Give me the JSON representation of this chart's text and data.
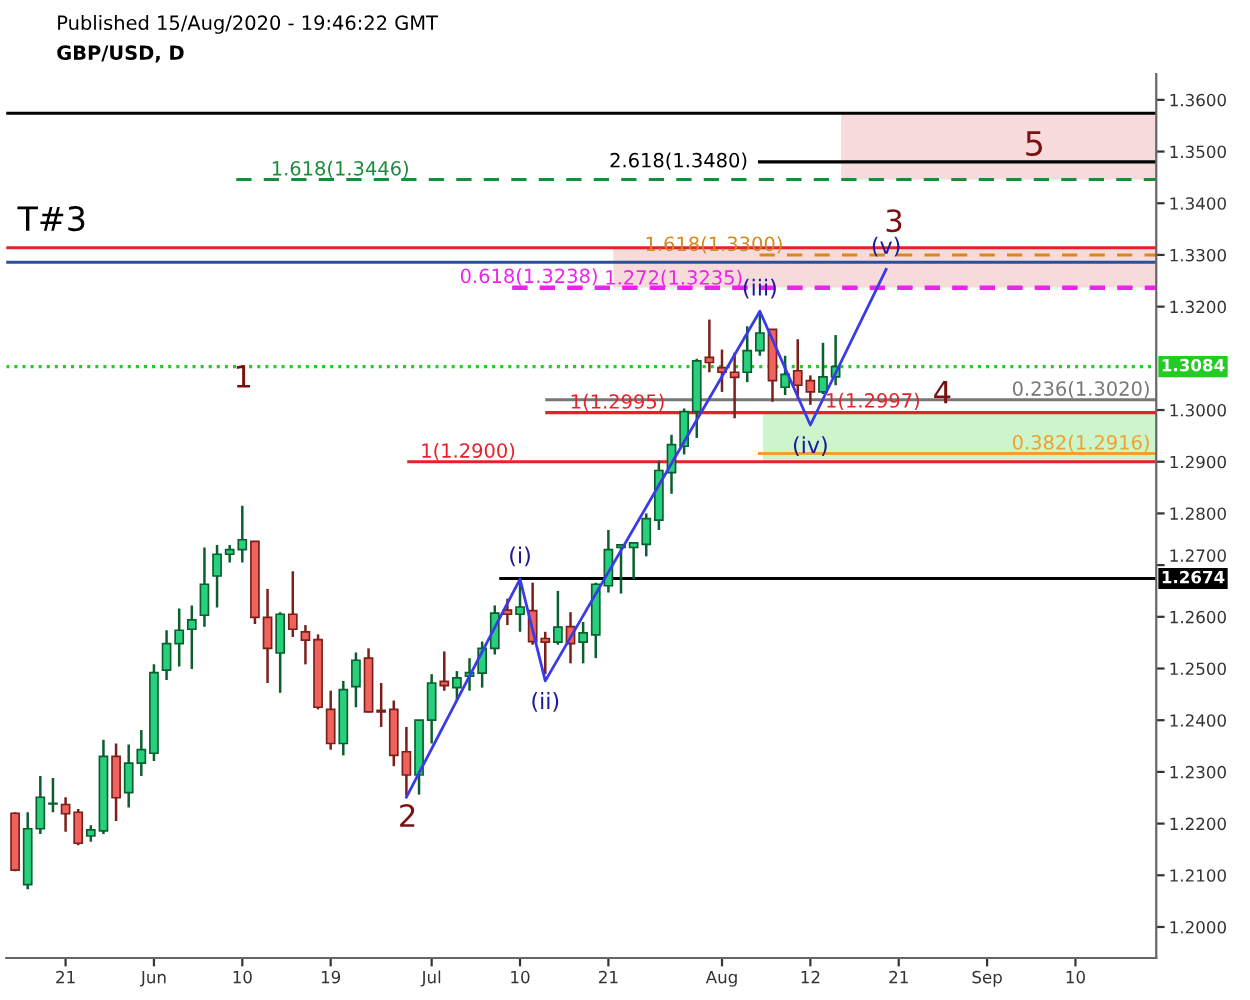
{
  "chart_data": {
    "type": "candlestick",
    "title": "GBP/USD, D",
    "annotations": [
      "Published 15/Aug/2020 - 19:46:22 GMT",
      "T#3",
      "1",
      "2",
      "3",
      "4",
      {
        "text": "1(1.2997)",
        "y": 1.2997
      }
    ],
    "categories": [
      null,
      null,
      null,
      null,
      "21",
      null,
      null,
      null,
      null,
      null,
      null,
      "Jun",
      null,
      null,
      null,
      null,
      null,
      null,
      "10",
      null,
      null,
      null,
      null,
      null,
      null,
      "19",
      null,
      null,
      null,
      null,
      null,
      null,
      null,
      "Jul",
      null,
      null,
      null,
      null,
      null,
      null,
      "10",
      null,
      null,
      null,
      null,
      null,
      null,
      "21",
      null,
      null,
      null,
      null,
      null,
      null,
      null,
      null,
      "Aug",
      null,
      null,
      null,
      null,
      null,
      null,
      "12",
      null,
      null,
      null,
      null,
      null,
      null,
      "21",
      null,
      null,
      null,
      null,
      null,
      null,
      "Sep",
      null,
      null,
      null,
      null,
      null,
      null,
      "10",
      null,
      null,
      null,
      null,
      null,
      null
    ],
    "ohlc": [
      [
        1.222,
        1.2222,
        1.2108,
        1.211
      ],
      [
        1.2082,
        1.2222,
        1.2073,
        1.219
      ],
      [
        1.219,
        1.2292,
        1.218,
        1.2251
      ],
      [
        1.2238,
        1.2288,
        1.2222,
        1.2239
      ],
      [
        1.2237,
        1.2251,
        1.2184,
        1.2219
      ],
      [
        1.2222,
        1.2228,
        1.2158,
        1.2162
      ],
      [
        1.2176,
        1.2197,
        1.2165,
        1.2188
      ],
      [
        1.2186,
        1.2362,
        1.218,
        1.233
      ],
      [
        1.233,
        1.2355,
        1.2205,
        1.225
      ],
      [
        1.226,
        1.2353,
        1.2231,
        1.2317
      ],
      [
        1.2317,
        1.2381,
        1.2292,
        1.2343
      ],
      [
        1.2336,
        1.2508,
        1.2321,
        1.2492
      ],
      [
        1.2497,
        1.2574,
        1.2478,
        1.2548
      ],
      [
        1.2548,
        1.2616,
        1.2504,
        1.2574
      ],
      [
        1.2576,
        1.2622,
        1.2499,
        1.2594
      ],
      [
        1.2603,
        1.2734,
        1.2581,
        1.2663
      ],
      [
        1.2679,
        1.2739,
        1.2618,
        1.2721
      ],
      [
        1.2721,
        1.2739,
        1.2705,
        1.273
      ],
      [
        1.273,
        1.2815,
        1.2705,
        1.2749
      ],
      [
        1.2746,
        1.2746,
        1.2586,
        1.2599
      ],
      [
        1.2599,
        1.2654,
        1.2472,
        1.2539
      ],
      [
        1.253,
        1.2609,
        1.2453,
        1.2605
      ],
      [
        1.2605,
        1.2688,
        1.2561,
        1.2576
      ],
      [
        1.2571,
        1.2584,
        1.2508,
        1.2555
      ],
      [
        1.2556,
        1.2566,
        1.2421,
        1.2425
      ],
      [
        1.2421,
        1.2457,
        1.2343,
        1.2355
      ],
      [
        1.2355,
        1.2476,
        1.2332,
        1.2459
      ],
      [
        1.2465,
        1.2531,
        1.2425,
        1.2516
      ],
      [
        1.252,
        1.2539,
        1.2415,
        1.2416
      ],
      [
        1.2419,
        1.2472,
        1.2387,
        1.2416
      ],
      [
        1.2421,
        1.2438,
        1.2311,
        1.2332
      ],
      [
        1.2339,
        1.2387,
        1.2254,
        1.2294
      ],
      [
        1.2294,
        1.24,
        1.2256,
        1.24
      ],
      [
        1.24,
        1.2489,
        1.2355,
        1.2472
      ],
      [
        1.2475,
        1.2533,
        1.2457,
        1.2467
      ],
      [
        1.2463,
        1.2495,
        1.2438,
        1.2482
      ],
      [
        1.2485,
        1.252,
        1.2457,
        1.2492
      ],
      [
        1.2491,
        1.2552,
        1.2463,
        1.2539
      ],
      [
        1.2539,
        1.2622,
        1.2527,
        1.2607
      ],
      [
        1.2613,
        1.2635,
        1.2584,
        1.2605
      ],
      [
        1.2605,
        1.2666,
        1.2571,
        1.2619
      ],
      [
        1.2612,
        1.2666,
        1.2546,
        1.2552
      ],
      [
        1.2558,
        1.2571,
        1.2489,
        1.2551
      ],
      [
        1.2551,
        1.265,
        1.2546,
        1.258
      ],
      [
        1.2581,
        1.2609,
        1.251,
        1.2548
      ],
      [
        1.2551,
        1.259,
        1.251,
        1.2569
      ],
      [
        1.2565,
        1.2666,
        1.252,
        1.2663
      ],
      [
        1.266,
        1.2768,
        1.2647,
        1.273
      ],
      [
        1.2734,
        1.2739,
        1.2645,
        1.2739
      ],
      [
        1.2734,
        1.2743,
        1.2673,
        1.2743
      ],
      [
        1.274,
        1.28,
        1.2717,
        1.279
      ],
      [
        1.2787,
        1.2902,
        1.2768,
        1.2883
      ],
      [
        1.2879,
        1.2952,
        1.2838,
        1.2933
      ],
      [
        1.293,
        1.3003,
        1.2914,
        1.2997
      ],
      [
        1.2997,
        1.3099,
        1.2946,
        1.3095
      ],
      [
        1.3102,
        1.3175,
        1.3073,
        1.3092
      ],
      [
        1.3082,
        1.3117,
        1.3035,
        1.3073
      ],
      [
        1.3073,
        1.3111,
        1.2984,
        1.3063
      ],
      [
        1.3073,
        1.3162,
        1.3054,
        1.3115
      ],
      [
        1.3115,
        1.3187,
        1.3105,
        1.3149
      ],
      [
        1.3156,
        1.3156,
        1.3016,
        1.3057
      ],
      [
        1.3044,
        1.3105,
        1.3029,
        1.3069
      ],
      [
        1.3076,
        1.3137,
        1.3022,
        1.3048
      ],
      [
        1.3057,
        1.3067,
        1.301,
        1.3035
      ],
      [
        1.3035,
        1.313,
        1.3031,
        1.3064
      ],
      [
        1.3064,
        1.3145,
        1.3048,
        1.3084
      ],
      null,
      null,
      null,
      null,
      null,
      null,
      null,
      null,
      null,
      null,
      null,
      null,
      null,
      null,
      null,
      null,
      null,
      null,
      null,
      null,
      null,
      null,
      null,
      null,
      null
    ],
    "series": [
      {
        "type": "line",
        "color": "#3a3ae8",
        "values": [
          null,
          null,
          null,
          null,
          null,
          null,
          null,
          null,
          null,
          null,
          null,
          null,
          null,
          null,
          null,
          null,
          null,
          null,
          null,
          null,
          null,
          null,
          null,
          null,
          null,
          null,
          null,
          null,
          null,
          null,
          null,
          1.2251,
          null,
          null,
          null,
          null,
          null,
          null,
          null,
          null,
          1.2673,
          null,
          1.2476,
          null,
          null,
          null,
          null,
          null,
          null,
          null,
          null,
          null,
          null,
          null,
          null,
          null,
          null,
          null,
          null,
          1.3191,
          null,
          null,
          null,
          1.2971,
          null,
          null,
          null,
          null,
          null,
          1.3272,
          null,
          null,
          null,
          null,
          null,
          null,
          null,
          null,
          null,
          null,
          null,
          null,
          null,
          null,
          null,
          null,
          null,
          null,
          null,
          null,
          null
        ],
        "value_labels": [
          null,
          null,
          null,
          null,
          null,
          null,
          null,
          null,
          null,
          null,
          null,
          null,
          null,
          null,
          null,
          null,
          null,
          null,
          null,
          null,
          null,
          null,
          null,
          null,
          null,
          null,
          null,
          null,
          null,
          null,
          null,
          null,
          null,
          null,
          null,
          null,
          null,
          null,
          null,
          null,
          "(i)",
          null,
          "(ii)",
          null,
          null,
          null,
          null,
          null,
          null,
          null,
          null,
          null,
          null,
          null,
          null,
          null,
          null,
          null,
          null,
          "(iii)",
          null,
          null,
          null,
          "(iv)",
          null,
          null,
          null,
          null,
          null,
          "(v)",
          null,
          null,
          null,
          null,
          null,
          null,
          null,
          null,
          null,
          null,
          null,
          null,
          null,
          null,
          null,
          null,
          null,
          null,
          null,
          null,
          null
        ]
      }
    ],
    "ref_lines": [
      {
        "axis": "y",
        "value": 1.3574,
        "color": "#000000",
        "line_style": "solid"
      },
      {
        "axis": "y",
        "value": 1.348,
        "color": "#000000",
        "line_style": "solid",
        "label": "2.618(1.3480)"
      },
      {
        "axis": "y",
        "value": 1.3446,
        "color": "#1a8c3a",
        "line_style": "dashed",
        "label": "1.618(1.3446)"
      },
      {
        "axis": "y",
        "value": 1.3314,
        "color": "#e8202a",
        "line_style": "solid"
      },
      {
        "axis": "y",
        "value": 1.33,
        "color": "#d08a20",
        "line_style": "dashed",
        "label": "1.618(1.3300)"
      },
      {
        "axis": "y",
        "value": 1.3286,
        "color": "#2c4f9a",
        "line_style": "solid"
      },
      {
        "axis": "y",
        "value": 1.3238,
        "color": "#ee22ee",
        "line_style": "dashed",
        "label": "0.618(1.3238)"
      },
      {
        "axis": "y",
        "value": 1.3235,
        "color": "#ee22ee",
        "line_style": "dashed",
        "label": "1.272(1.3235)"
      },
      {
        "axis": "y",
        "value": 1.3084,
        "color": "#22cc22",
        "line_style": "dotted",
        "label": "1.3084"
      },
      {
        "axis": "y",
        "value": 1.302,
        "color": "#777777",
        "line_style": "solid",
        "label": "0.236(1.3020)"
      },
      {
        "axis": "y",
        "value": 1.2995,
        "color": "#e8202a",
        "line_style": "solid",
        "label": "1(1.2995)"
      },
      {
        "axis": "y",
        "value": 1.2916,
        "color": "#f0a030",
        "line_style": "solid",
        "label": "0.382(1.2916)"
      },
      {
        "axis": "y",
        "value": 1.29,
        "color": "#e8202a",
        "line_style": "solid",
        "label": "1(1.2900)"
      },
      {
        "axis": "y",
        "value": 1.2674,
        "color": "#000000",
        "line_style": "solid",
        "label": "1.2674"
      }
    ],
    "bands": [
      {
        "axis": "y",
        "from": 1.3446,
        "to": 1.3574,
        "color": "#f7dada",
        "label": "5"
      },
      {
        "axis": "y",
        "from": 1.3237,
        "to": 1.3314,
        "color": "#f7dada"
      },
      {
        "axis": "y",
        "from": 1.29,
        "to": 1.2995,
        "color": "#ccf5cc"
      }
    ],
    "ylim": [
      1.194,
      1.365
    ],
    "yticks": [
      {
        "value": 1.2,
        "label": "1.2000"
      },
      {
        "value": 1.21,
        "label": "1.2100"
      },
      {
        "value": 1.22,
        "label": "1.2200"
      },
      {
        "value": 1.23,
        "label": "1.2300"
      },
      {
        "value": 1.24,
        "label": "1.2400"
      },
      {
        "value": 1.25,
        "label": "1.2500"
      },
      {
        "value": 1.26,
        "label": "1.2600"
      },
      {
        "value": 1.27,
        "label": "1.2700"
      },
      {
        "value": 1.28,
        "label": "1.2800"
      },
      {
        "value": 1.29,
        "label": "1.2900"
      },
      {
        "value": 1.3,
        "label": "1.3000"
      },
      {
        "value": 1.32,
        "label": "1.3200"
      },
      {
        "value": 1.33,
        "label": "1.3300"
      },
      {
        "value": 1.34,
        "label": "1.3400"
      },
      {
        "value": 1.35,
        "label": "1.3500"
      },
      {
        "value": 1.36,
        "label": "1.3600"
      }
    ]
  }
}
